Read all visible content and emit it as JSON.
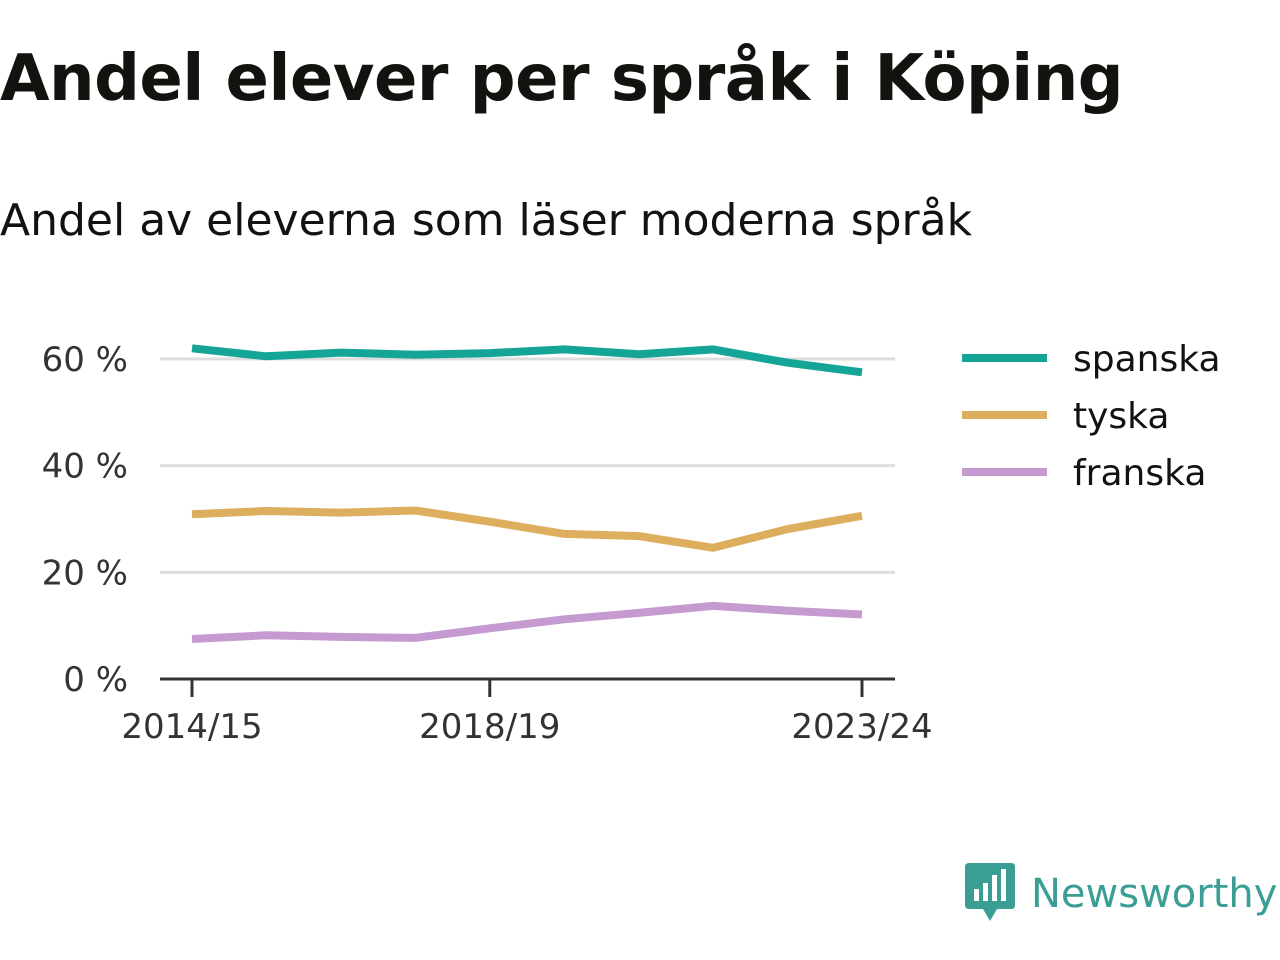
{
  "header": {
    "title": "Andel elever per språk i Köping",
    "subtitle": "Andel av eleverna som läser moderna språk"
  },
  "brand": {
    "name": "Newsworthy",
    "color": "#3a9e94",
    "icon": "chart-bubble-icon"
  },
  "chart_data": {
    "type": "line",
    "x": [
      "2014/15",
      "2015/16",
      "2016/17",
      "2017/18",
      "2018/19",
      "2019/20",
      "2020/21",
      "2021/22",
      "2022/23",
      "2023/24"
    ],
    "x_tick_labels": [
      "2014/15",
      "2018/19",
      "2023/24"
    ],
    "series": [
      {
        "name": "spanska",
        "color": "#15a597",
        "values": [
          62,
          60.5,
          61.2,
          60.8,
          61.1,
          61.8,
          60.9,
          61.8,
          59.3,
          57.5
        ]
      },
      {
        "name": "tyska",
        "color": "#dcae5e",
        "values": [
          30.9,
          31.5,
          31.2,
          31.6,
          29.5,
          27.2,
          26.8,
          24.6,
          28.1,
          30.6
        ]
      },
      {
        "name": "franska",
        "color": "#c49ad0",
        "values": [
          7.5,
          8.2,
          7.9,
          7.7,
          9.5,
          11.2,
          12.4,
          13.7,
          12.8,
          12.1
        ]
      }
    ],
    "y_ticks": [
      {
        "value": 0,
        "label": "0 %"
      },
      {
        "value": 20,
        "label": "20 %"
      },
      {
        "value": 40,
        "label": "40 %"
      },
      {
        "value": 60,
        "label": "60 %"
      }
    ],
    "ylim": [
      0,
      60
    ],
    "grid": true,
    "legend_position": "right",
    "title": "Andel elever per språk i Köping",
    "subtitle": "Andel av eleverna som läser moderna språk",
    "xlabel": "",
    "ylabel": ""
  }
}
